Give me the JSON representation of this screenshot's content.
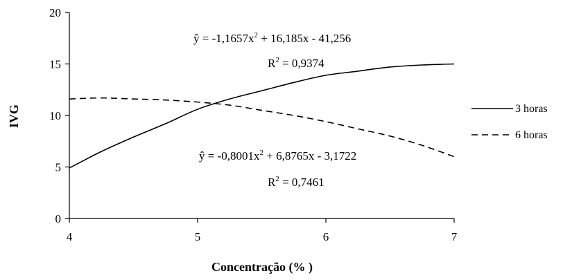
{
  "chart_data": {
    "type": "line",
    "title": "",
    "xlabel": "Concentração (% )",
    "ylabel": "IVG",
    "xlim": [
      4,
      7
    ],
    "ylim": [
      0,
      20
    ],
    "xticks": [
      "4",
      "5",
      "6",
      "7"
    ],
    "yticks": [
      "0",
      "5",
      "10",
      "15",
      "20"
    ],
    "grid": false,
    "legend_position": "right",
    "series": [
      {
        "name": "3 horas",
        "style": "solid",
        "x": [
          4.0,
          4.25,
          4.5,
          4.75,
          5.0,
          5.25,
          5.5,
          5.75,
          6.0,
          6.25,
          6.5,
          6.75,
          7.0
        ],
        "y": [
          4.9,
          6.5,
          7.9,
          9.2,
          10.6,
          11.6,
          12.4,
          13.2,
          13.9,
          14.3,
          14.7,
          14.9,
          15.0
        ]
      },
      {
        "name": "6 horas",
        "style": "dashed",
        "x": [
          4.0,
          4.25,
          4.5,
          4.75,
          5.0,
          5.25,
          5.5,
          5.75,
          6.0,
          6.25,
          6.5,
          6.75,
          7.0
        ],
        "y": [
          11.6,
          11.7,
          11.6,
          11.5,
          11.3,
          11.0,
          10.5,
          10.0,
          9.4,
          8.7,
          8.0,
          7.1,
          6.0
        ]
      }
    ],
    "annotations": {
      "eq1_line1": "ŷ = -1,1657x",
      "eq1_line1_rest": " + 16,185x - 41,256",
      "eq1_r2": "R",
      "eq1_r2_value": " = 0,9374",
      "eq2_line1": "ŷ = -0,8001x",
      "eq2_line1_rest": " + 6,8765x - 3,1722",
      "eq2_r2": "R",
      "eq2_r2_value": " = 0,7461",
      "superscript": "2"
    }
  }
}
